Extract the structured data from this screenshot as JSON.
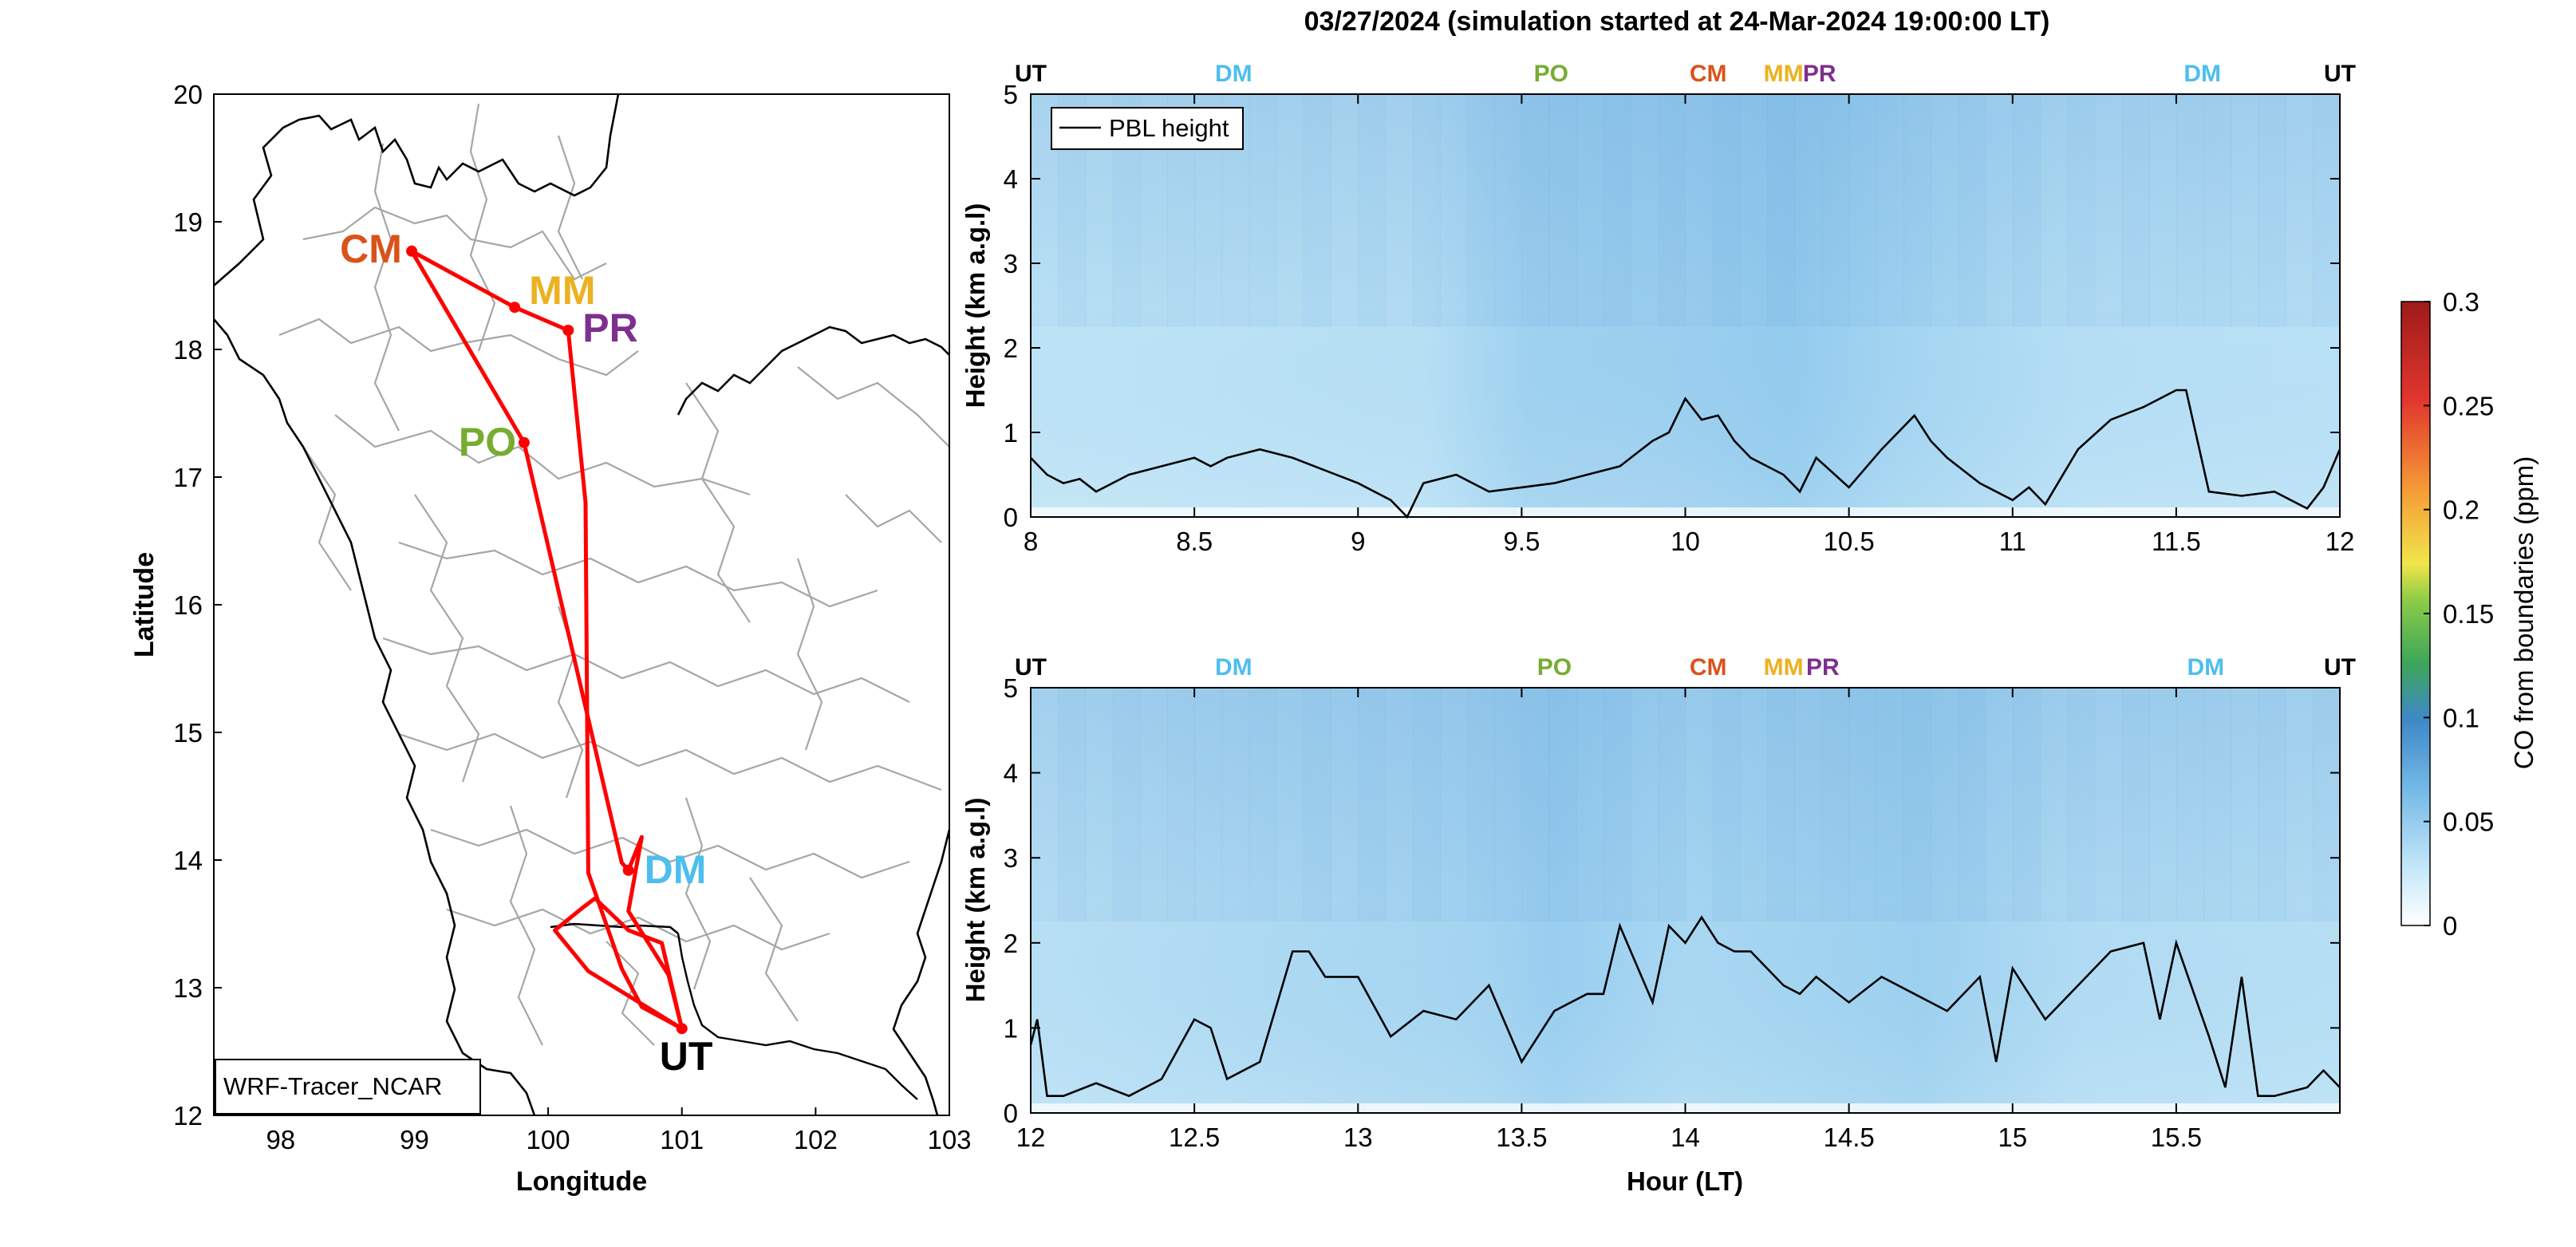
{
  "title": "03/27/2024 (simulation started at 24-Mar-2024 19:00:00 LT)",
  "colors": {
    "UT": "#000000",
    "DM": "#4DBEEE",
    "PO": "#77AC30",
    "CM": "#D95319",
    "MM": "#EDB120",
    "PR": "#7E2F8E",
    "route": "#FF0000",
    "pbl": "#000000",
    "boundary": "#A6A6A6"
  },
  "map_panel": {
    "xlabel": "Longitude",
    "ylabel": "Latitude",
    "xlim": [
      97.5,
      103
    ],
    "ylim": [
      12,
      20
    ],
    "xticks": [
      "98",
      "99",
      "100",
      "101",
      "102",
      "103"
    ],
    "yticks": [
      "12",
      "13",
      "14",
      "15",
      "16",
      "17",
      "18",
      "19",
      "20"
    ],
    "box_label": "WRF-Tracer_NCAR"
  },
  "chart_data": [
    {
      "type": "heatmap",
      "panel": "top",
      "xlabel": "",
      "ylabel": "Height (km a.g.l)",
      "xlim": [
        8,
        12
      ],
      "ylim": [
        0,
        5
      ],
      "xticks": [
        "8",
        "8.5",
        "9",
        "9.5",
        "10",
        "10.5",
        "11",
        "11.5",
        "12"
      ],
      "yticks": [
        "0",
        "1",
        "2",
        "3",
        "4",
        "5"
      ],
      "legend": {
        "label": "PBL height",
        "placement": "top-left"
      },
      "site_markers": [
        {
          "label": "UT",
          "x": 8.0
        },
        {
          "label": "DM",
          "x": 8.62
        },
        {
          "label": "PO",
          "x": 9.59
        },
        {
          "label": "CM",
          "x": 10.07
        },
        {
          "label": "MM",
          "x": 10.3
        },
        {
          "label": "PR",
          "x": 10.41
        },
        {
          "label": "DM",
          "x": 11.58
        },
        {
          "label": "UT",
          "x": 12.0
        }
      ],
      "series": [
        {
          "name": "PBL height",
          "x": [
            8.0,
            8.05,
            8.1,
            8.15,
            8.2,
            8.3,
            8.4,
            8.5,
            8.55,
            8.6,
            8.7,
            8.8,
            8.9,
            9.0,
            9.1,
            9.15,
            9.2,
            9.3,
            9.4,
            9.5,
            9.6,
            9.7,
            9.8,
            9.9,
            9.95,
            10.0,
            10.05,
            10.1,
            10.15,
            10.2,
            10.3,
            10.35,
            10.4,
            10.5,
            10.6,
            10.7,
            10.75,
            10.8,
            10.9,
            11.0,
            11.05,
            11.1,
            11.2,
            11.3,
            11.4,
            11.5,
            11.53,
            11.6,
            11.7,
            11.8,
            11.9,
            11.95,
            12.0
          ],
          "y": [
            0.7,
            0.5,
            0.4,
            0.45,
            0.3,
            0.5,
            0.6,
            0.7,
            0.6,
            0.7,
            0.8,
            0.7,
            0.55,
            0.4,
            0.2,
            0.0,
            0.4,
            0.5,
            0.3,
            0.35,
            0.4,
            0.5,
            0.6,
            0.9,
            1.0,
            1.4,
            1.15,
            1.2,
            0.9,
            0.7,
            0.5,
            0.3,
            0.7,
            0.35,
            0.8,
            1.2,
            0.9,
            0.7,
            0.4,
            0.2,
            0.35,
            0.15,
            0.8,
            1.15,
            1.3,
            1.5,
            1.5,
            0.3,
            0.25,
            0.3,
            0.1,
            0.35,
            0.8
          ]
        }
      ]
    },
    {
      "type": "heatmap",
      "panel": "bottom",
      "xlabel": "Hour (LT)",
      "ylabel": "Height (km a.g.l)",
      "xlim": [
        12,
        16
      ],
      "ylim": [
        0,
        5
      ],
      "xticks": [
        "12",
        "12.5",
        "13",
        "13.5",
        "14",
        "14.5",
        "15",
        "15.5"
      ],
      "yticks": [
        "0",
        "1",
        "2",
        "3",
        "4",
        "5"
      ],
      "site_markers": [
        {
          "label": "UT",
          "x": 12.0
        },
        {
          "label": "DM",
          "x": 12.62
        },
        {
          "label": "PO",
          "x": 13.6
        },
        {
          "label": "CM",
          "x": 14.07
        },
        {
          "label": "MM",
          "x": 14.3
        },
        {
          "label": "PR",
          "x": 14.42
        },
        {
          "label": "DM",
          "x": 15.59
        },
        {
          "label": "UT",
          "x": 16.0
        }
      ],
      "series": [
        {
          "name": "PBL height",
          "x": [
            12.0,
            12.02,
            12.05,
            12.1,
            12.2,
            12.3,
            12.4,
            12.5,
            12.55,
            12.6,
            12.65,
            12.7,
            12.8,
            12.85,
            12.9,
            13.0,
            13.1,
            13.2,
            13.3,
            13.4,
            13.5,
            13.6,
            13.7,
            13.75,
            13.8,
            13.9,
            13.95,
            14.0,
            14.05,
            14.1,
            14.15,
            14.2,
            14.3,
            14.35,
            14.4,
            14.5,
            14.6,
            14.7,
            14.8,
            14.9,
            14.95,
            15.0,
            15.1,
            15.2,
            15.3,
            15.4,
            15.45,
            15.5,
            15.6,
            15.65,
            15.7,
            15.75,
            15.8,
            15.9,
            15.95,
            16.0
          ],
          "y": [
            0.8,
            1.1,
            0.2,
            0.2,
            0.35,
            0.2,
            0.4,
            1.1,
            1.0,
            0.4,
            0.5,
            0.6,
            1.9,
            1.9,
            1.6,
            1.6,
            0.9,
            1.2,
            1.1,
            1.5,
            0.6,
            1.2,
            1.4,
            1.4,
            2.2,
            1.3,
            2.2,
            2.0,
            2.3,
            2.0,
            1.9,
            1.9,
            1.5,
            1.4,
            1.6,
            1.3,
            1.6,
            1.4,
            1.2,
            1.6,
            0.6,
            1.7,
            1.1,
            1.5,
            1.9,
            2.0,
            1.1,
            2.0,
            0.9,
            0.3,
            1.6,
            0.2,
            0.2,
            0.3,
            0.5,
            0.3
          ]
        }
      ]
    }
  ],
  "colorbar": {
    "label": "CO from boundaries (ppm)",
    "ticks": [
      "0",
      "0.05",
      "0.1",
      "0.15",
      "0.2",
      "0.25",
      "0.3"
    ],
    "range": [
      0,
      0.3
    ]
  }
}
